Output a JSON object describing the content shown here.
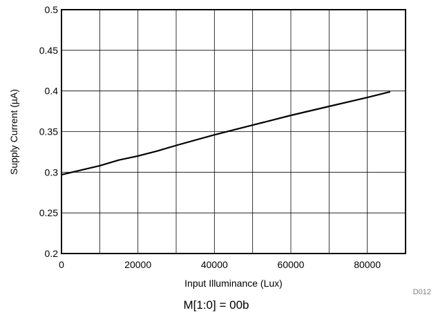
{
  "chart_data": {
    "type": "line",
    "xlabel": "Input Illuminance (Lux)",
    "ylabel": "Supply Current (µA)",
    "xlim": [
      0,
      90000
    ],
    "ylim": [
      0.2,
      0.5
    ],
    "x_ticks": [
      0,
      20000,
      40000,
      60000,
      80000
    ],
    "y_ticks": [
      0.2,
      0.25,
      0.3,
      0.35,
      0.4,
      0.45,
      0.5
    ],
    "grid": true,
    "legend": "none",
    "series": [
      {
        "color": "#000000",
        "x": [
          0,
          10000,
          15000,
          20000,
          25000,
          30000,
          40000,
          50000,
          60000,
          70000,
          80000,
          86000
        ],
        "y": [
          0.297,
          0.308,
          0.315,
          0.32,
          0.326,
          0.333,
          0.346,
          0.358,
          0.37,
          0.381,
          0.392,
          0.399
        ]
      }
    ],
    "footnote": "D012",
    "caption": "M[1:0] = 00b"
  }
}
